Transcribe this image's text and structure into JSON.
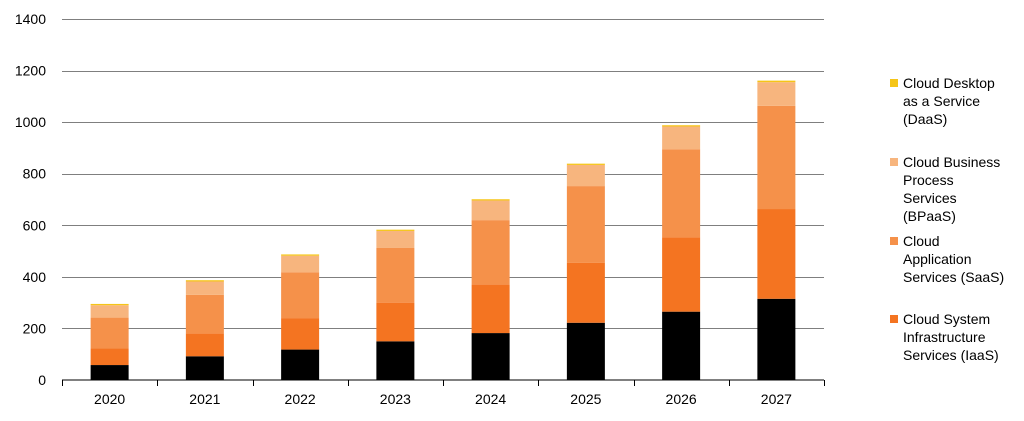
{
  "chart_data": {
    "type": "bar",
    "stacked": true,
    "title": "",
    "xlabel": "",
    "ylabel": "",
    "categories": [
      "2020",
      "2021",
      "2022",
      "2023",
      "2024",
      "2025",
      "2026",
      "2027"
    ],
    "ylim": [
      0,
      1400
    ],
    "yticks": [
      0,
      200,
      400,
      600,
      800,
      1000,
      1200,
      1400
    ],
    "grid": true,
    "legend_position": "right",
    "series": [
      {
        "name": "",
        "color": "#000000",
        "values": [
          58,
          92,
          118,
          150,
          182,
          222,
          265,
          315
        ]
      },
      {
        "name": "Cloud System Infrastructure Services (IaaS)",
        "color": "#f47421",
        "values": [
          64,
          88,
          122,
          150,
          188,
          232,
          288,
          348
        ]
      },
      {
        "name": "Cloud Application Services (SaaS)",
        "color": "#f5914a",
        "values": [
          120,
          150,
          178,
          212,
          250,
          298,
          342,
          400
        ]
      },
      {
        "name": "Cloud Business Process Services (BPaaS)",
        "color": "#f7b57e",
        "values": [
          48,
          52,
          64,
          66,
          76,
          82,
          88,
          92
        ]
      },
      {
        "name": "Cloud Desktop as a Service (DaaS)",
        "color": "#f5c518",
        "values": [
          5,
          5,
          5,
          5,
          5,
          5,
          5,
          6
        ]
      }
    ]
  },
  "legend": [
    {
      "lines": [
        "Cloud Desktop",
        "as a Service",
        "(DaaS)"
      ],
      "color": "#f5c518"
    },
    {
      "lines": [
        "Cloud Business",
        "Process",
        "Services",
        "(BPaaS)"
      ],
      "color": "#f7b57e"
    },
    {
      "lines": [
        "Cloud",
        "Application",
        "Services (SaaS)"
      ],
      "color": "#f5914a"
    },
    {
      "lines": [
        "Cloud System",
        "Infrastructure",
        "Services (IaaS)"
      ],
      "color": "#f47421"
    }
  ]
}
